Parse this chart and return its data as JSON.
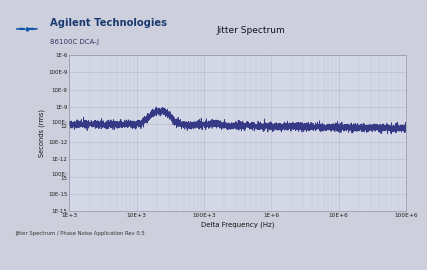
{
  "title": "Jitter Spectrum",
  "subtitle": "86100C DCA-J",
  "company": "Agilent Technologies",
  "xlabel": "Delta Frequency (Hz)",
  "ylabel": "Seconds (rms)",
  "footer": "Jitter Spectrum / Phase Noise Application Rev 0.5",
  "xmin": 1000,
  "xmax": 100000000,
  "ymin": 1e-15,
  "ymax": 1e-06,
  "fig_bg": "#cdd0dc",
  "plot_bg": "#d4d7e5",
  "header_bg": "#d8dbe8",
  "line_color": "#2d3080",
  "grid_color": "#b8bcd0",
  "ytick_values": [
    1e-15,
    1e-14,
    1e-13,
    1e-12,
    1e-11,
    1e-10,
    1e-09,
    1e-08,
    1e-07,
    1e-06
  ],
  "ytick_labels": [
    "1E-15",
    "10E-15",
    "100E-\n15",
    "1E-12",
    "10E-12",
    "100E-\n12",
    "1E-9",
    "10E-9",
    "100E-9",
    "1E-6"
  ],
  "xtick_values": [
    1000,
    10000,
    100000,
    1000000,
    10000000,
    100000000
  ],
  "xtick_labels": [
    "1E+3",
    "10E+3",
    "100E+3",
    "1E+6",
    "10E+6",
    "100E+6"
  ]
}
